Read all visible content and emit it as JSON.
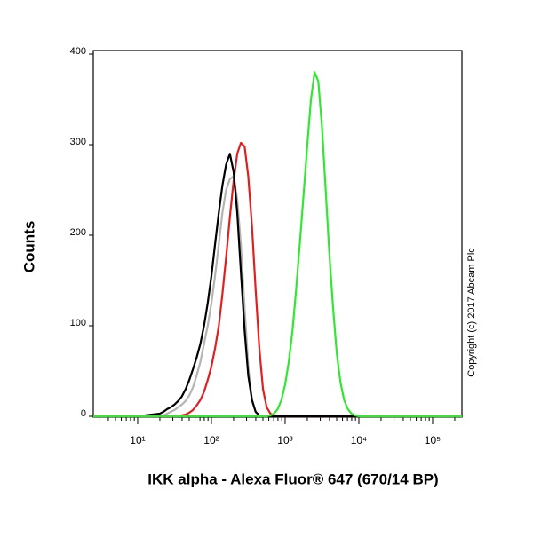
{
  "chart_data": {
    "type": "line",
    "xlabel": "IKK alpha - Alexa Fluor® 647 (670/14 BP)",
    "ylabel": "Counts",
    "annotation": "Copyright (c) 2017 Abcam Plc",
    "xscale": "log",
    "xlim": [
      2.5,
      250000
    ],
    "ylim": [
      0,
      400
    ],
    "xticks": [
      {
        "value": 10,
        "label": "10¹"
      },
      {
        "value": 100,
        "label": "10²"
      },
      {
        "value": 1000,
        "label": "10³"
      },
      {
        "value": 10000,
        "label": "10⁴"
      },
      {
        "value": 100000,
        "label": "10⁵"
      }
    ],
    "xminorticks": [
      3,
      4,
      5,
      6,
      7,
      8,
      9,
      20,
      30,
      40,
      50,
      60,
      70,
      80,
      90,
      200,
      300,
      400,
      500,
      600,
      700,
      800,
      900,
      2000,
      3000,
      4000,
      5000,
      6000,
      7000,
      8000,
      9000,
      20000,
      30000,
      40000,
      50000,
      60000,
      70000,
      80000,
      90000,
      200000
    ],
    "yticks": [
      0,
      100,
      200,
      300,
      400
    ],
    "x": [
      2.5,
      10,
      20,
      22.4,
      25.1,
      28.2,
      31.6,
      35.5,
      39.8,
      44.7,
      50.1,
      56.2,
      63.1,
      70.8,
      79.4,
      89.1,
      100,
      112,
      126,
      141,
      158,
      178,
      200,
      224,
      251,
      282,
      316,
      355,
      398,
      447,
      501,
      562,
      631,
      708,
      794,
      891,
      1000,
      1120,
      1260,
      1410,
      1580,
      1780,
      2000,
      2240,
      2510,
      2820,
      3160,
      3550,
      3980,
      4470,
      5010,
      5620,
      6310,
      7080,
      7940,
      8910,
      10000,
      11200,
      250000
    ],
    "series": [
      {
        "color": "#b4b4b4",
        "values": [
          0,
          0,
          0,
          1,
          3,
          5,
          7,
          10,
          13,
          17,
          23,
          32,
          45,
          60,
          80,
          100,
          125,
          155,
          190,
          225,
          250,
          262,
          265,
          240,
          190,
          120,
          55,
          18,
          5,
          1,
          0,
          0,
          0,
          0,
          0,
          0,
          0,
          0,
          0,
          0,
          0,
          0,
          0,
          0,
          0,
          0,
          0,
          0,
          0,
          0,
          0,
          0,
          0,
          0,
          0,
          0,
          0,
          0,
          0
        ]
      },
      {
        "color": "#e02020",
        "values": [
          0,
          0,
          0,
          0,
          0,
          0,
          0,
          0,
          1,
          2,
          4,
          7,
          12,
          18,
          27,
          40,
          55,
          75,
          100,
          135,
          175,
          220,
          260,
          290,
          302,
          298,
          265,
          210,
          140,
          75,
          30,
          10,
          3,
          1,
          0,
          0,
          0,
          0,
          0,
          0,
          0,
          0,
          0,
          0,
          0,
          0,
          0,
          0,
          0,
          0,
          0,
          0,
          0,
          0,
          0,
          0,
          0,
          0,
          0
        ]
      },
      {
        "color": "#000000",
        "values": [
          0,
          0,
          3,
          5,
          8,
          10,
          13,
          17,
          22,
          30,
          40,
          52,
          65,
          80,
          100,
          125,
          155,
          190,
          225,
          255,
          278,
          290,
          270,
          225,
          160,
          95,
          45,
          18,
          5,
          1,
          0,
          0,
          0,
          0,
          0,
          0,
          0,
          0,
          0,
          0,
          0,
          0,
          0,
          0,
          0,
          0,
          0,
          0,
          0,
          0,
          0,
          0,
          0,
          0,
          0,
          0,
          0,
          0,
          0
        ]
      },
      {
        "color": "#33e633",
        "values": [
          0,
          0,
          0,
          0,
          0,
          0,
          0,
          0,
          0,
          0,
          0,
          0,
          0,
          0,
          0,
          0,
          0,
          0,
          0,
          0,
          0,
          0,
          0,
          0,
          0,
          0,
          0,
          0,
          0,
          0,
          0,
          0,
          1,
          3,
          8,
          18,
          35,
          60,
          95,
          140,
          190,
          245,
          300,
          350,
          380,
          370,
          320,
          250,
          180,
          120,
          70,
          38,
          18,
          8,
          3,
          1,
          0,
          0,
          0
        ]
      }
    ]
  }
}
